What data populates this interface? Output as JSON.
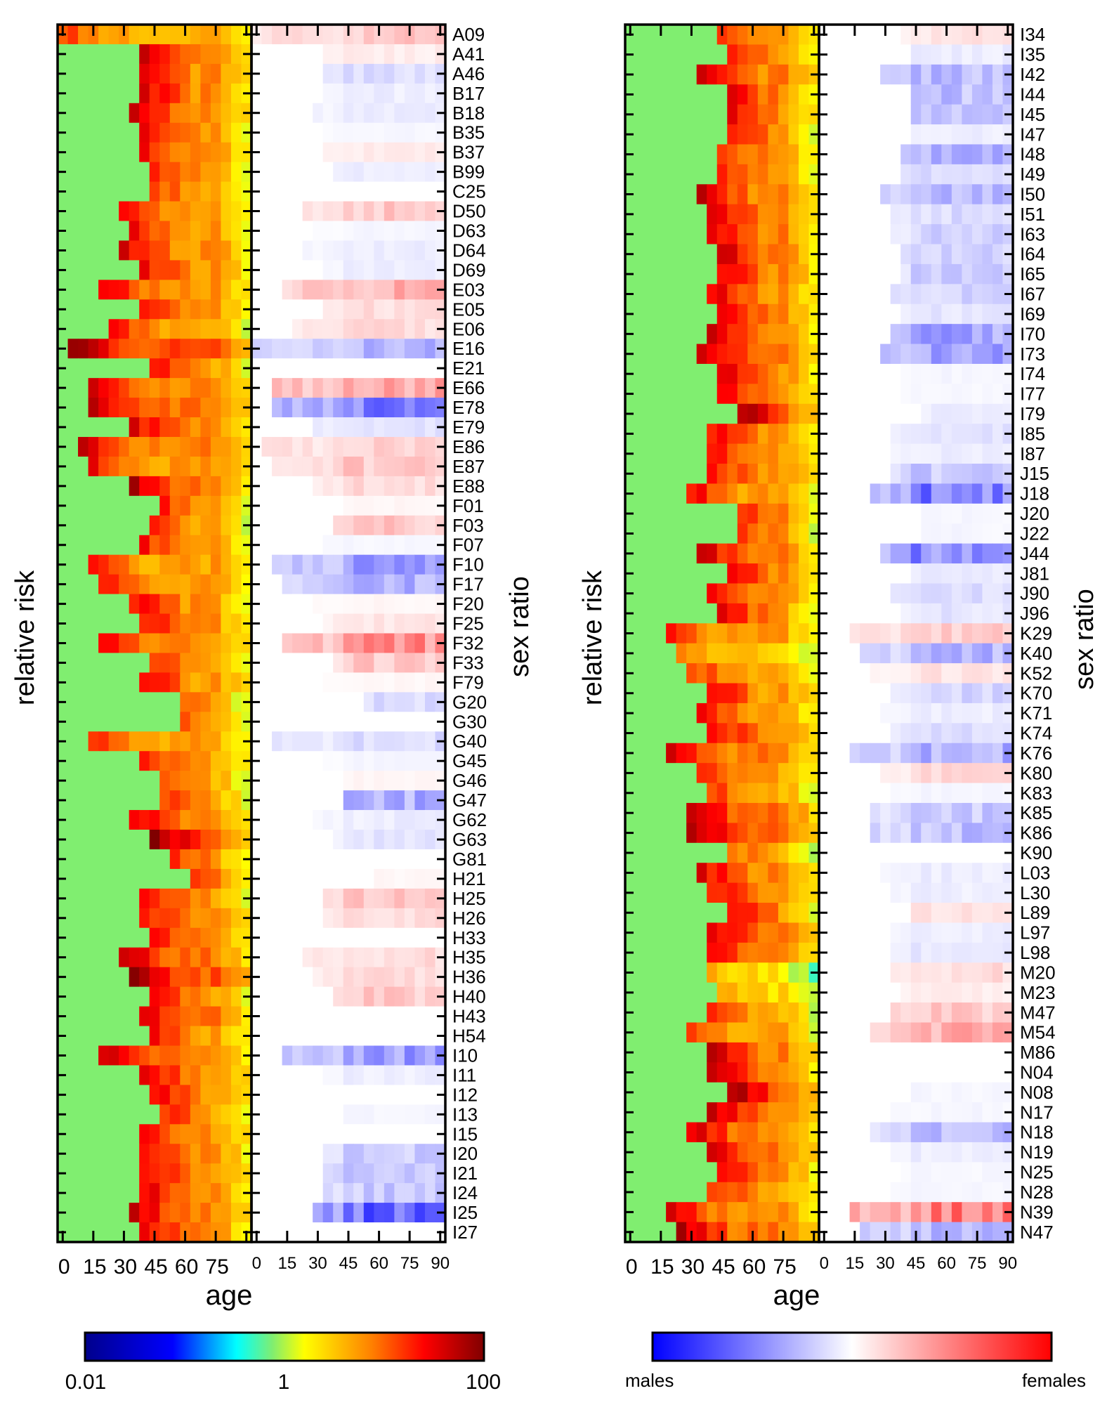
{
  "figure": {
    "bar_left": {
      "min_label": "0.01",
      "mid_label": "1",
      "max_label": "100"
    },
    "bar_right": {
      "min_label": "males",
      "max_label": "females"
    }
  },
  "chart_data": [
    {
      "type": "heatmap",
      "panel": "left",
      "ylabel_rr": "relative risk",
      "ylabel_sr": "sex ratio",
      "xlabel": "age",
      "rr_xticks": [
        "0",
        "15",
        "30",
        "45",
        "60",
        "75"
      ],
      "sr_xticks": [
        "0",
        "15",
        "30",
        "45",
        "60",
        "75",
        "90"
      ],
      "age_range": [
        0,
        90
      ],
      "rr_scale": "log",
      "rr_range": [
        0.01,
        100
      ],
      "codes": [
        "A09",
        "A41",
        "A46",
        "B17",
        "B18",
        "B35",
        "B37",
        "B99",
        "C25",
        "D50",
        "D63",
        "D64",
        "D69",
        "E03",
        "E05",
        "E06",
        "E16",
        "E21",
        "E66",
        "E78",
        "E79",
        "E86",
        "E87",
        "E88",
        "F01",
        "F03",
        "F07",
        "F10",
        "F17",
        "F20",
        "F25",
        "F32",
        "F33",
        "F79",
        "G20",
        "G30",
        "G40",
        "G45",
        "G46",
        "G47",
        "G62",
        "G63",
        "G81",
        "H21",
        "H25",
        "H26",
        "H33",
        "H35",
        "H36",
        "H40",
        "H43",
        "H54",
        "I10",
        "I11",
        "I12",
        "I13",
        "I15",
        "I20",
        "I21",
        "I24",
        "I25",
        "I27"
      ],
      "onset_age": [
        0,
        40,
        40,
        40,
        35,
        40,
        40,
        45,
        45,
        30,
        35,
        30,
        40,
        20,
        40,
        25,
        5,
        45,
        15,
        15,
        35,
        10,
        15,
        35,
        50,
        45,
        40,
        15,
        20,
        35,
        40,
        20,
        45,
        40,
        60,
        60,
        15,
        40,
        50,
        50,
        35,
        45,
        55,
        65,
        40,
        40,
        45,
        30,
        35,
        45,
        40,
        45,
        20,
        40,
        45,
        50,
        40,
        40,
        40,
        40,
        35,
        40
      ],
      "peak_level": [
        1.2,
        1.6,
        1.5,
        1.5,
        1.5,
        1.4,
        1.4,
        1.3,
        1.2,
        1.4,
        1.4,
        1.5,
        1.4,
        1.5,
        1.4,
        1.3,
        2.0,
        1.3,
        1.6,
        1.7,
        1.5,
        1.6,
        1.4,
        1.7,
        1.2,
        1.2,
        1.3,
        1.3,
        1.3,
        1.4,
        1.4,
        1.4,
        1.2,
        1.4,
        1.0,
        1.0,
        1.3,
        1.3,
        1.2,
        1.2,
        1.5,
        1.9,
        1.2,
        1.2,
        1.4,
        1.4,
        1.4,
        1.7,
        1.9,
        1.4,
        1.6,
        1.3,
        1.6,
        1.5,
        1.4,
        1.3,
        1.4,
        1.5,
        1.5,
        1.5,
        1.6,
        1.5
      ],
      "sex_bias": [
        0.3,
        0.1,
        -0.2,
        -0.1,
        -0.1,
        -0.05,
        0.1,
        -0.1,
        0,
        0.3,
        -0.05,
        -0.1,
        -0.1,
        0.45,
        0.2,
        0.2,
        -0.4,
        0,
        0.55,
        -0.7,
        -0.15,
        0.25,
        0.3,
        0.2,
        0.05,
        0.3,
        -0.05,
        -0.5,
        -0.45,
        0.05,
        0.15,
        0.6,
        0.3,
        0.05,
        -0.2,
        0,
        -0.2,
        -0.05,
        0.05,
        -0.45,
        -0.1,
        -0.15,
        0,
        0.05,
        0.3,
        0.2,
        0,
        0.2,
        0.2,
        0.3,
        0,
        0,
        -0.55,
        -0.1,
        0,
        -0.05,
        0,
        -0.3,
        -0.3,
        -0.3,
        -0.85,
        0
      ]
    },
    {
      "type": "heatmap",
      "panel": "right",
      "ylabel_rr": "relative risk",
      "ylabel_sr": "sex ratio",
      "xlabel": "age",
      "rr_xticks": [
        "0",
        "15",
        "30",
        "45",
        "60",
        "75"
      ],
      "sr_xticks": [
        "0",
        "15",
        "30",
        "45",
        "60",
        "75",
        "90"
      ],
      "age_range": [
        0,
        90
      ],
      "rr_scale": "log",
      "rr_range": [
        0.01,
        100
      ],
      "codes": [
        "I34",
        "I35",
        "I42",
        "I44",
        "I45",
        "I47",
        "I48",
        "I49",
        "I50",
        "I51",
        "I63",
        "I64",
        "I65",
        "I67",
        "I69",
        "I70",
        "I73",
        "I74",
        "I77",
        "I79",
        "I85",
        "I87",
        "J15",
        "J18",
        "J20",
        "J22",
        "J44",
        "J81",
        "J90",
        "J96",
        "K29",
        "K40",
        "K52",
        "K70",
        "K71",
        "K74",
        "K76",
        "K80",
        "K83",
        "K85",
        "K86",
        "K90",
        "L03",
        "L30",
        "L89",
        "L97",
        "L98",
        "M20",
        "M23",
        "M47",
        "M54",
        "M86",
        "N04",
        "N08",
        "N17",
        "N18",
        "N19",
        "N25",
        "N28",
        "N39",
        "N47"
      ],
      "onset_age": [
        45,
        50,
        35,
        50,
        50,
        50,
        45,
        45,
        35,
        40,
        40,
        45,
        45,
        40,
        45,
        40,
        35,
        45,
        45,
        55,
        40,
        40,
        40,
        30,
        55,
        55,
        35,
        50,
        40,
        45,
        20,
        25,
        30,
        40,
        35,
        40,
        20,
        35,
        40,
        30,
        30,
        50,
        35,
        40,
        50,
        40,
        40,
        40,
        45,
        40,
        30,
        40,
        40,
        50,
        40,
        30,
        40,
        45,
        40,
        20,
        25
      ],
      "peak_level": [
        1.3,
        1.3,
        1.6,
        1.4,
        1.4,
        1.3,
        1.3,
        1.3,
        1.6,
        1.6,
        1.6,
        1.6,
        1.5,
        1.5,
        1.5,
        1.6,
        1.7,
        1.5,
        1.5,
        1.8,
        1.4,
        1.4,
        1.4,
        1.4,
        1.3,
        1.2,
        1.6,
        1.4,
        1.4,
        1.4,
        1.3,
        0.8,
        1.2,
        1.4,
        1.3,
        1.5,
        1.6,
        1.3,
        1.2,
        1.7,
        1.8,
        1.0,
        1.5,
        1.4,
        1.4,
        1.6,
        1.5,
        0.6,
        0.7,
        1.2,
        1.2,
        1.6,
        1.6,
        1.8,
        1.6,
        1.6,
        1.6,
        1.5,
        1.3,
        1.5,
        1.7
      ],
      "sex_bias": [
        0.15,
        -0.1,
        -0.4,
        -0.35,
        -0.3,
        -0.1,
        -0.4,
        -0.2,
        -0.4,
        -0.2,
        -0.25,
        -0.25,
        -0.3,
        -0.25,
        -0.15,
        -0.5,
        -0.5,
        -0.05,
        -0.05,
        -0.1,
        -0.15,
        -0.1,
        -0.3,
        -0.7,
        -0.05,
        -0.05,
        -0.7,
        -0.1,
        -0.2,
        -0.15,
        0.3,
        -0.4,
        0.15,
        -0.25,
        -0.1,
        -0.2,
        -0.45,
        0.2,
        -0.05,
        -0.3,
        -0.35,
        0,
        -0.1,
        -0.1,
        0.15,
        -0.1,
        -0.15,
        0.2,
        0.1,
        0.3,
        0.5,
        0,
        0,
        -0.05,
        -0.05,
        -0.35,
        -0.1,
        -0.05,
        -0.05,
        0.7,
        -0.4
      ]
    }
  ]
}
